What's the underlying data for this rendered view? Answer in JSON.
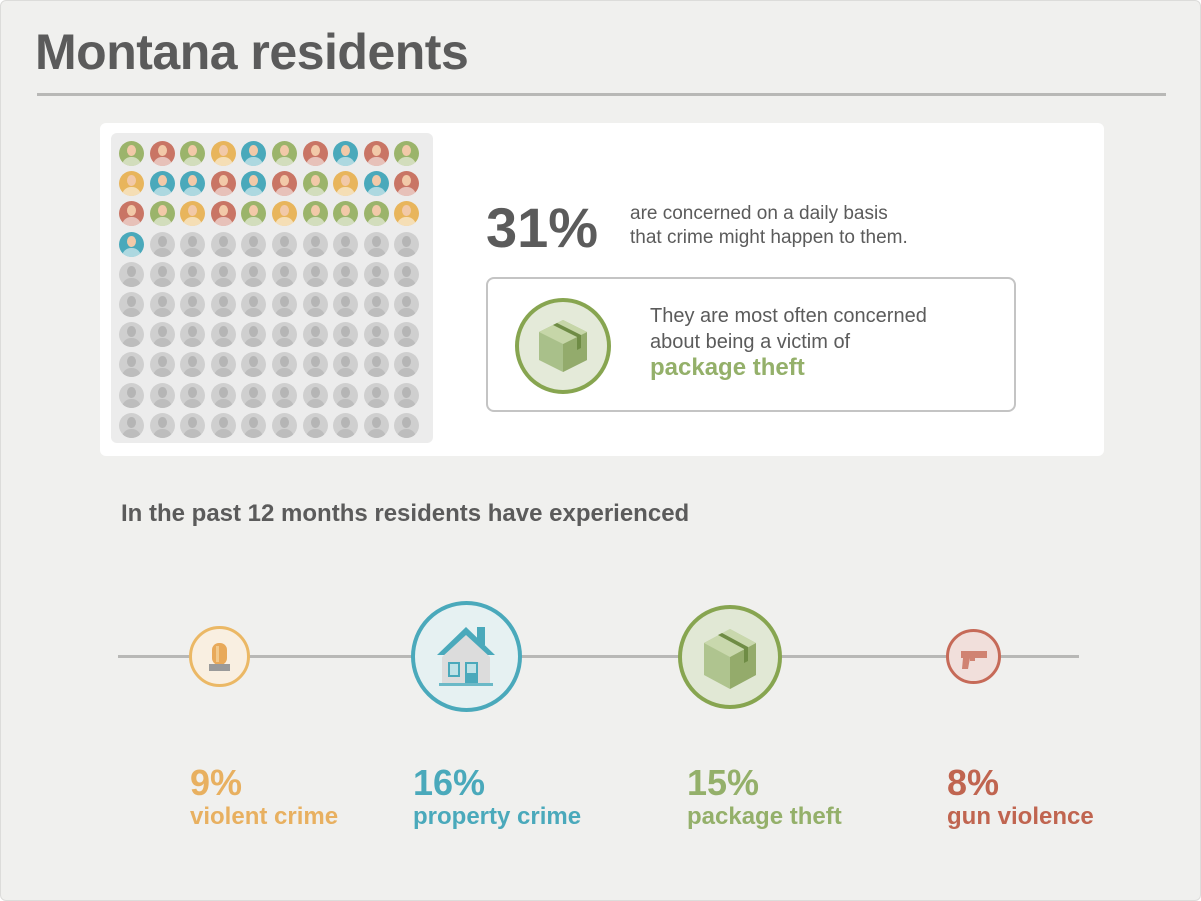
{
  "title": "Montana residents",
  "grid": {
    "total": 100,
    "colored": 31,
    "palette": [
      "#9bb46b",
      "#c97565",
      "#9bb46b",
      "#e8b55c",
      "#4aa9bb",
      "#9bb46b",
      "#c97565",
      "#4aa9bb",
      "#c97565",
      "#9bb46b",
      "#e8b55c",
      "#4aa9bb",
      "#4aa9bb",
      "#c97565",
      "#4aa9bb",
      "#c97565",
      "#9bb46b",
      "#e8b55c",
      "#4aa9bb",
      "#c97565",
      "#c97565",
      "#9bb46b",
      "#e8b55c",
      "#c97565",
      "#9bb46b",
      "#e8b55c",
      "#9bb46b",
      "#9bb46b",
      "#9bb46b",
      "#e8b55c",
      "#4aa9bb"
    ],
    "gray": "#cfcfcf"
  },
  "headline": {
    "percent": "31%",
    "line1": "are concerned on a daily basis",
    "line2": "that crime might happen to them."
  },
  "concern_box": {
    "icon": "package-icon",
    "line1": "They are most often concerned",
    "line2": "about being a victim of",
    "highlight": "package theft"
  },
  "section_title": "In the past 12 months residents have experienced",
  "stats": [
    {
      "percent": "9%",
      "label": "violent crime",
      "icon": "siren-icon",
      "color": "#e8b060"
    },
    {
      "percent": "16%",
      "label": "property crime",
      "icon": "house-icon",
      "color": "#4aa9bb"
    },
    {
      "percent": "15%",
      "label": "package theft",
      "icon": "package-icon",
      "color": "#94b06a"
    },
    {
      "percent": "8%",
      "label": "gun violence",
      "icon": "gun-icon",
      "color": "#c06550"
    }
  ]
}
